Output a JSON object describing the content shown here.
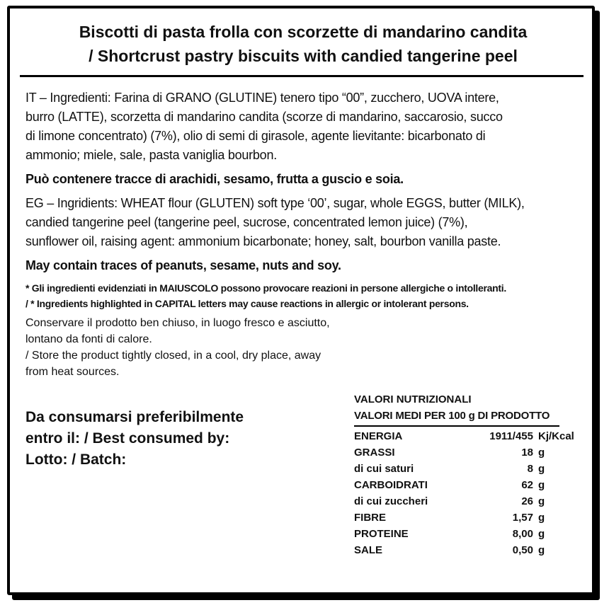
{
  "label": {
    "title_line1": "Biscotti di pasta frolla con scorzette di mandarino candita",
    "title_line2": "/ Shortcrust pastry biscuits with candied tangerine peel",
    "ingredients_it": "IT – Ingredienti: Farina di GRANO (GLUTINE) tenero tipo “00”, zucchero, UOVA intere,\nburro (LATTE), scorzetta di mandarino candita (scorze di mandarino, saccarosio, succo\ndi limone concentrato) (7%), olio di semi di girasole, agente lievitante: bicarbonato di\nammonio; miele, sale, pasta vaniglia bourbon.",
    "allergen_it": "Può contenere tracce di arachidi, sesamo, frutta a guscio e soia.",
    "ingredients_en": "EG – Ingridients: WHEAT flour (GLUTEN) soft type ‘00’, sugar, whole EGGS, butter (MILK),\ncandied tangerine peel (tangerine peel, sucrose, concentrated lemon juice) (7%),\nsunflower oil, raising agent: ammonium bicarbonate; honey, salt, bourbon vanilla paste.",
    "allergen_en": "May contain traces of peanuts, sesame, nuts and soy.",
    "capital_note": "* Gli ingredienti evidenziati in MAIUSCOLO possono provocare reazioni in persone allergiche o intolleranti.\n/ * Ingredients highlighted in CAPITAL letters may cause reactions in allergic or intolerant persons.",
    "storage": "Conservare il prodotto ben chiuso, in luogo fresco e asciutto,\nlontano da fonti di calore.\n/ Store the product tightly closed, in a cool, dry place, away\nfrom heat sources.",
    "best_before": "Da consumarsi preferibilmente\nentro il: / Best consumed by:\nLotto: / Batch:"
  },
  "nutrition": {
    "title": "VALORI NUTRIZIONALI",
    "subtitle": "VALORI MEDI PER 100 g  DI PRODOTTO",
    "rows": [
      {
        "label": "ENERGIA",
        "value": "1911/455",
        "unit": "Kj/Kcal"
      },
      {
        "label": "GRASSI",
        "value": "18",
        "unit": "g"
      },
      {
        "label": "di cui saturi",
        "value": "8",
        "unit": "g"
      },
      {
        "label": "CARBOIDRATI",
        "value": "62",
        "unit": "g"
      },
      {
        "label": "di cui zuccheri",
        "value": "26",
        "unit": "g"
      },
      {
        "label": "FIBRE",
        "value": "1,57",
        "unit": "g"
      },
      {
        "label": "PROTEINE",
        "value": "8,00",
        "unit": "g"
      },
      {
        "label": "SALE",
        "value": "0,50",
        "unit": "g"
      }
    ]
  },
  "colors": {
    "background": "#ffffff",
    "border": "#000000",
    "text": "#111111"
  }
}
